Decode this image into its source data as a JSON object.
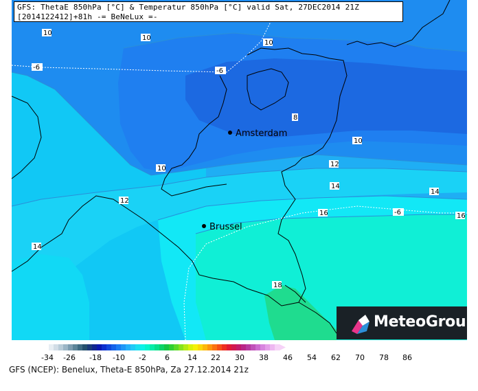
{
  "header": {
    "line1": "GFS: ThetaE 850hPa [°C] & Temperatur 850hPa [°C] valid Sat, 27DEC2014 21Z",
    "line2": "[2014122412]+81h -= BeNeLux =-"
  },
  "cities": [
    {
      "name": "Amsterdam"
    },
    {
      "name": "Brussel"
    }
  ],
  "contour_labels": {
    "thetae": [
      "10",
      "10",
      "10",
      "8",
      "10",
      "10",
      "12",
      "12",
      "14",
      "14",
      "16",
      "16",
      "14",
      "18"
    ],
    "temperature": [
      "-6",
      "-6",
      "-6"
    ]
  },
  "colorbar": {
    "tick_labels": [
      "-34",
      "-26",
      "-18",
      "-10",
      "-2",
      "6",
      "14",
      "22",
      "30",
      "38",
      "46",
      "54",
      "62",
      "70",
      "78",
      "86"
    ],
    "colors": [
      "#ffffff",
      "#e8eef3",
      "#d2dde6",
      "#b9ccd8",
      "#9cb6c6",
      "#7d9db0",
      "#5c8599",
      "#3e6b82",
      "#24506d",
      "#1a3a79",
      "#10268f",
      "#0a18b0",
      "#0c2fce",
      "#1048dc",
      "#1462ea",
      "#1a7cf3",
      "#1f97f7",
      "#24b1fa",
      "#1fcaf7",
      "#18e0f0",
      "#0df2e8",
      "#06f5cc",
      "#05eca8",
      "#06e089",
      "#0ad367",
      "#14c644",
      "#2fcf33",
      "#5ada28",
      "#87e31d",
      "#b3ec13",
      "#d9f20b",
      "#f5f108",
      "#fbd708",
      "#fdb80a",
      "#fd960d",
      "#fb7311",
      "#f55017",
      "#ee2f20",
      "#e01a35",
      "#d1184f",
      "#c21b6b",
      "#b92687",
      "#b83aa0",
      "#c052b9",
      "#cc6bcf",
      "#d885df",
      "#e49ee9",
      "#eeb8f1",
      "#f6d2f7"
    ]
  },
  "logo": {
    "text": "MeteoGroup"
  },
  "footer": "GFS (NCEP): Benelux, Theta-E 850hPa, Za 27.12.2014 21z",
  "colors": {
    "band_8": "#1d6fe4",
    "band_10": "#1e8cf0",
    "band_12": "#1faef4",
    "band_14": "#12e4f6",
    "band_16": "#10f2d0",
    "band_18": "#1fe28f"
  }
}
